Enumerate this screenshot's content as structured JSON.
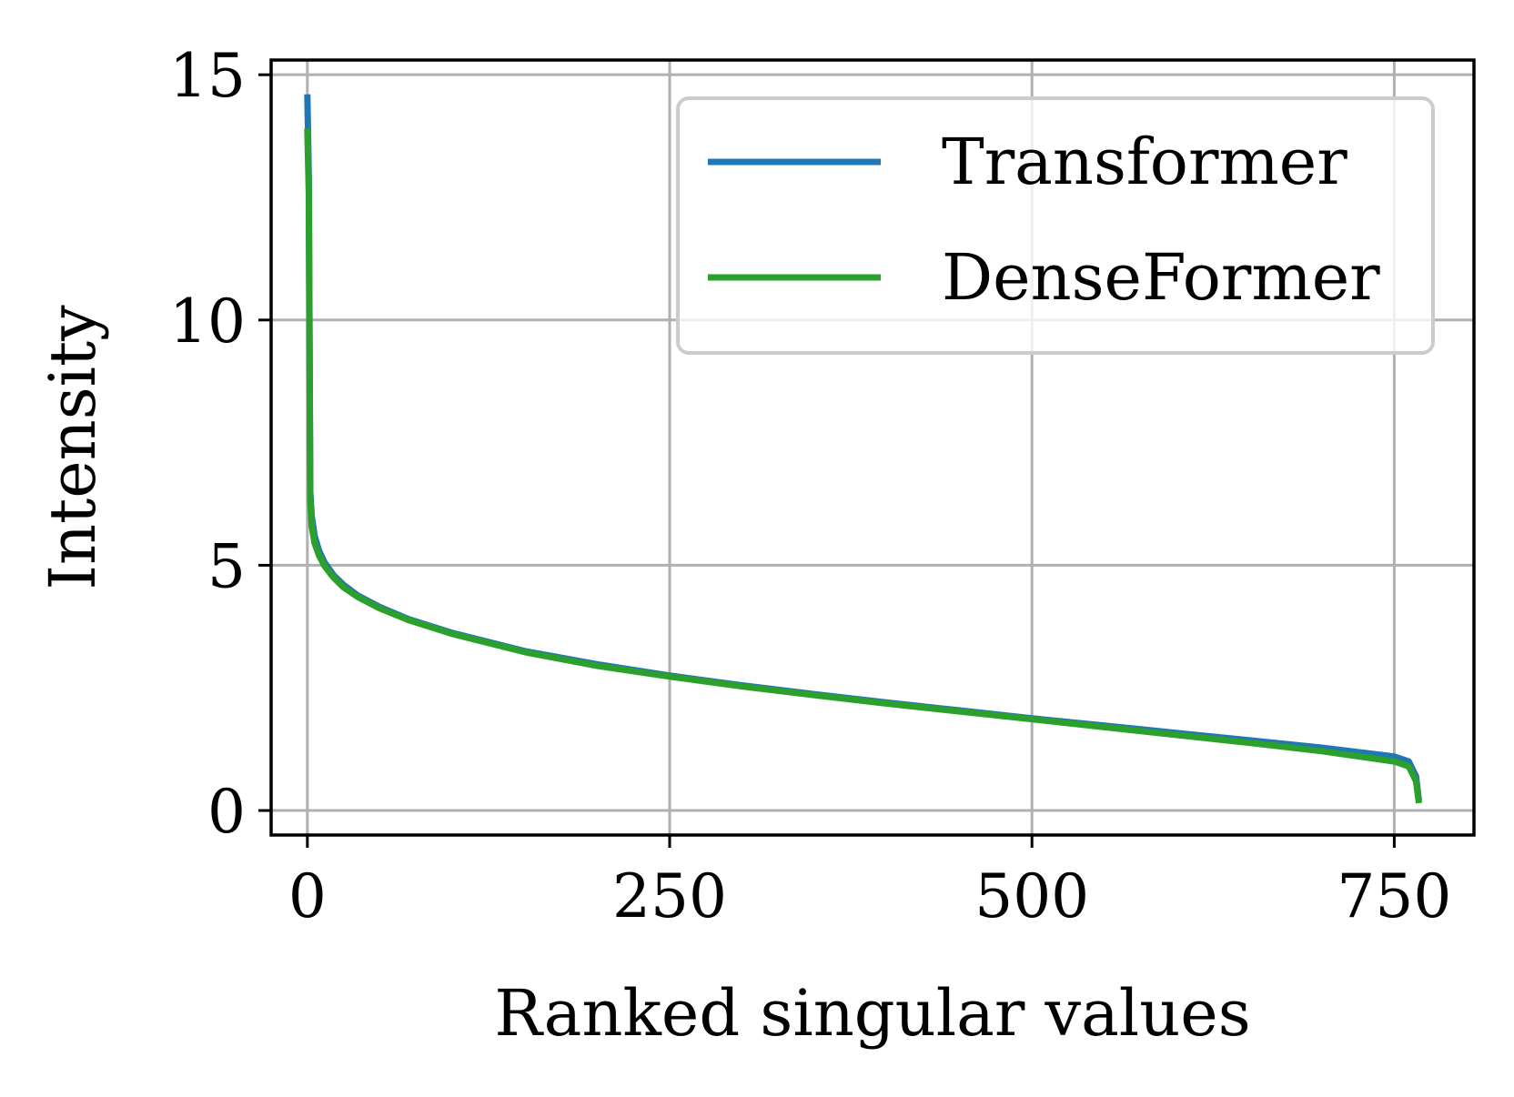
{
  "chart_data": {
    "type": "line",
    "xlabel": "Ranked singular values",
    "ylabel": "Intensity",
    "xlim": [
      -25,
      805
    ],
    "ylim": [
      -0.5,
      15.3
    ],
    "xticks": [
      0,
      250,
      500,
      750
    ],
    "xtick_labels": [
      "0",
      "250",
      "500",
      "750"
    ],
    "yticks": [
      0,
      5,
      10,
      15
    ],
    "ytick_labels": [
      "0",
      "5",
      "10",
      "15"
    ],
    "grid": true,
    "legend_position": "top-right",
    "series": [
      {
        "name": "Transformer",
        "color": "#1f77b4",
        "x": [
          0,
          1,
          2,
          3,
          5,
          8,
          12,
          18,
          25,
          35,
          50,
          70,
          100,
          150,
          200,
          250,
          300,
          350,
          400,
          450,
          500,
          550,
          600,
          650,
          700,
          750,
          760,
          765,
          767
        ],
        "values": [
          14.6,
          12.9,
          6.5,
          6.0,
          5.6,
          5.3,
          5.05,
          4.8,
          4.6,
          4.38,
          4.15,
          3.9,
          3.62,
          3.25,
          2.98,
          2.75,
          2.55,
          2.37,
          2.2,
          2.04,
          1.88,
          1.73,
          1.58,
          1.43,
          1.28,
          1.1,
          1.0,
          0.7,
          0.2
        ]
      },
      {
        "name": "DenseFormer",
        "color": "#2ca02c",
        "x": [
          0,
          1,
          2,
          3,
          5,
          8,
          12,
          18,
          25,
          35,
          50,
          70,
          100,
          150,
          200,
          250,
          300,
          350,
          400,
          450,
          500,
          550,
          600,
          650,
          700,
          750,
          760,
          765,
          767
        ],
        "values": [
          13.9,
          12.6,
          6.3,
          5.8,
          5.45,
          5.2,
          4.98,
          4.75,
          4.55,
          4.35,
          4.12,
          3.88,
          3.6,
          3.23,
          2.95,
          2.73,
          2.53,
          2.35,
          2.18,
          2.02,
          1.86,
          1.7,
          1.54,
          1.38,
          1.21,
          1.0,
          0.9,
          0.6,
          0.15
        ]
      }
    ]
  }
}
